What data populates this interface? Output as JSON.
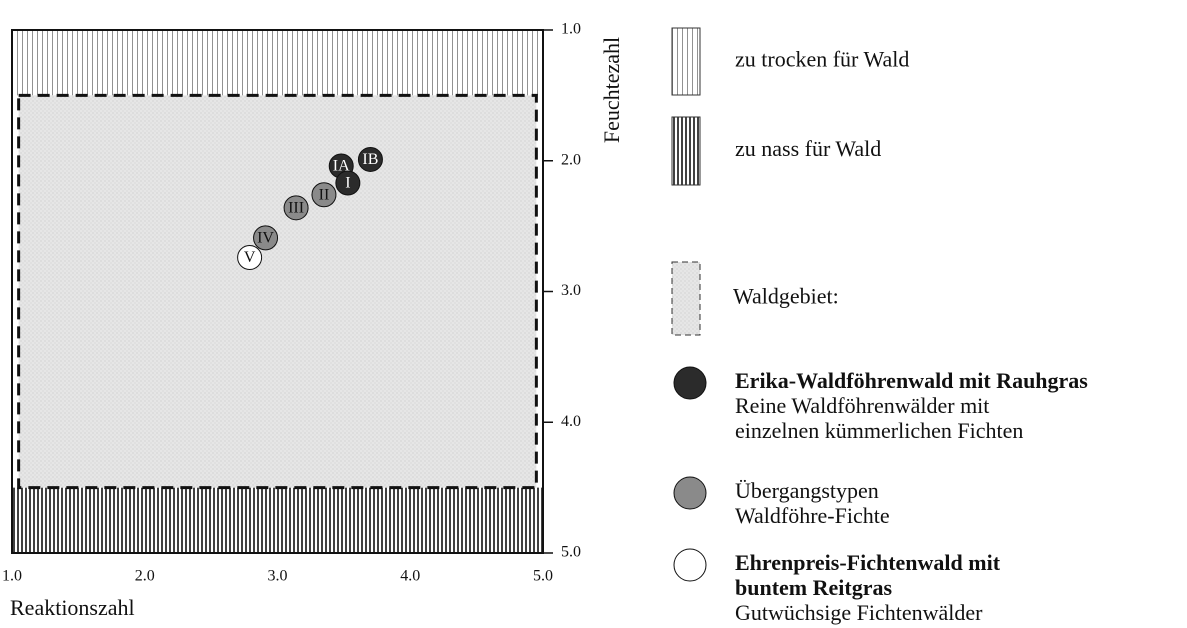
{
  "chart_data": {
    "type": "scatter",
    "xlabel": "Reaktionszahl",
    "ylabel": "Feuchtezahl",
    "xlim": [
      1,
      5
    ],
    "ylim": [
      1,
      5
    ],
    "y_inverted": true,
    "xticks": [
      {
        "value": 1,
        "label": "1.0"
      },
      {
        "value": 2,
        "label": "2.0"
      },
      {
        "value": 3,
        "label": "3.0"
      },
      {
        "value": 4,
        "label": "4.0"
      },
      {
        "value": 5,
        "label": "5.0"
      }
    ],
    "yticks": [
      {
        "value": 1,
        "label": "1.0"
      },
      {
        "value": 2,
        "label": "2.0"
      },
      {
        "value": 3,
        "label": "3.0"
      },
      {
        "value": 4,
        "label": "4.0"
      },
      {
        "value": 5,
        "label": "5.0"
      }
    ],
    "zones": [
      {
        "name": "zu trocken für Wald",
        "pattern": "dry",
        "xlim": [
          1,
          5
        ],
        "ylim": [
          1,
          1.5
        ]
      },
      {
        "name": "zu nass für Wald",
        "pattern": "wet",
        "xlim": [
          1,
          5
        ],
        "ylim": [
          4.5,
          5
        ]
      },
      {
        "name": "Waldgebiet:",
        "pattern": "forest",
        "xlim": [
          1.05,
          4.95
        ],
        "ylim": [
          1.5,
          4.5
        ]
      }
    ],
    "series": [
      {
        "name": [
          "Erika-Waldföhrenwald mit Rauhgras"
        ],
        "description": [
          "Reine Waldföhrenwälder mit",
          "einzelnen kümmerlichen Fichten"
        ],
        "color": "#2b2b2b",
        "text_color": "#ffffff",
        "labels": [
          "IA",
          "IB",
          "I"
        ],
        "x": [
          3.48,
          3.7,
          3.53
        ],
        "y": [
          2.04,
          1.99,
          2.17
        ]
      },
      {
        "name": [],
        "description": [
          "Übergangstypen",
          "Waldföhre-Fichte"
        ],
        "color": "#8a8a8a",
        "text_color": "#111111",
        "labels": [
          "II",
          "III",
          "IV"
        ],
        "x": [
          3.35,
          3.14,
          2.91
        ],
        "y": [
          2.26,
          2.36,
          2.59
        ]
      },
      {
        "name": [
          "Ehrenpreis-Fichtenwald mit",
          "buntem Reitgras"
        ],
        "description": [
          "Gutwüchsige Fichtenwälder"
        ],
        "color": "#ffffff",
        "text_color": "#111111",
        "labels": [
          "V"
        ],
        "x": [
          2.79
        ],
        "y": [
          2.74
        ]
      }
    ]
  }
}
